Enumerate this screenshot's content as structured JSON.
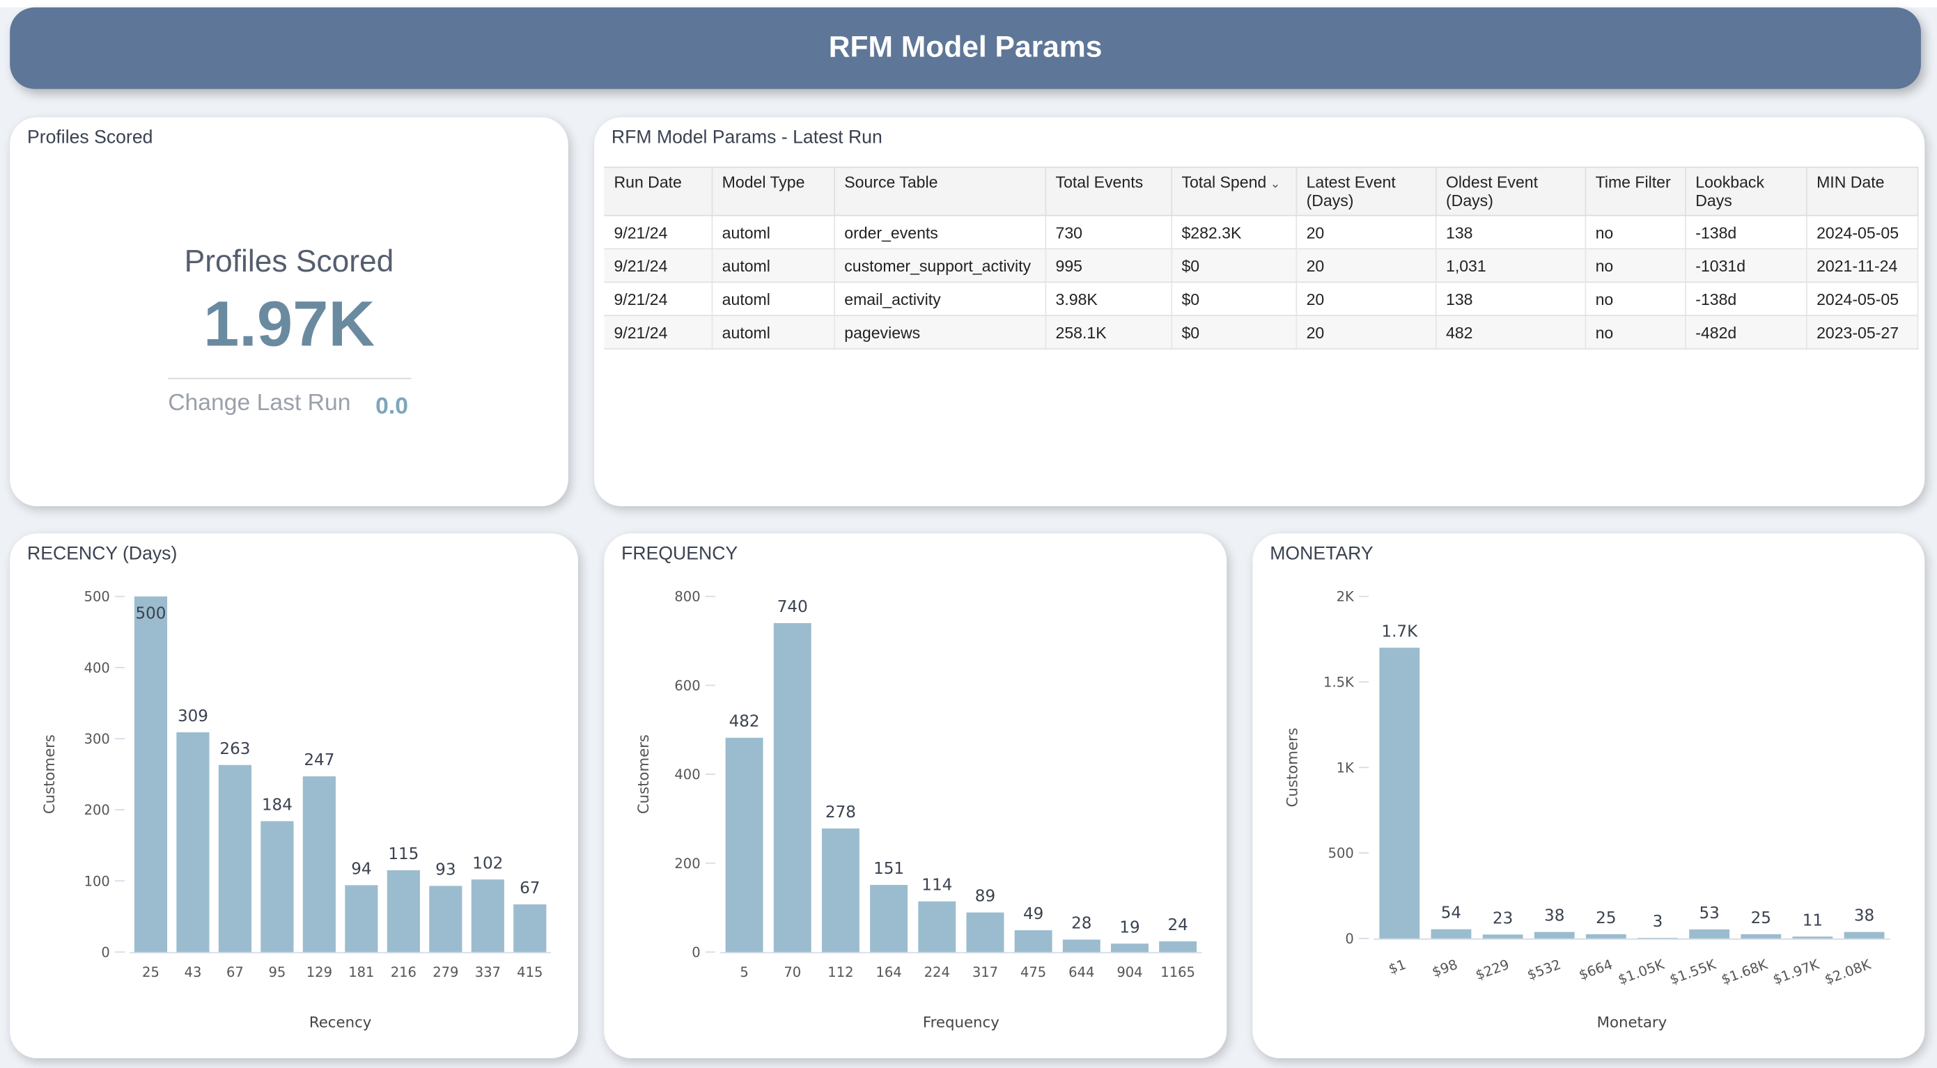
{
  "header": {
    "title": "RFM Model Params"
  },
  "kpi": {
    "card_title": "Profiles Scored",
    "label": "Profiles Scored",
    "value": "1.97K",
    "change_label": "Change Last Run",
    "change_value": "0.0"
  },
  "table": {
    "title": "RFM Model Params - Latest Run",
    "columns": [
      "Run Date",
      "Model Type",
      "Source Table",
      "Total Events",
      "Total Spend",
      "Latest Event (Days)",
      "Oldest Event (Days)",
      "Time Filter",
      "Lookback Days",
      "MIN Date"
    ],
    "sorted_column": "Total Spend",
    "rows": [
      [
        "9/21/24",
        "automl",
        "order_events",
        "730",
        "$282.3K",
        "20",
        "138",
        "no",
        "-138d",
        "2024-05-05"
      ],
      [
        "9/21/24",
        "automl",
        "customer_support_activity",
        "995",
        "$0",
        "20",
        "1,031",
        "no",
        "-1031d",
        "2021-11-24"
      ],
      [
        "9/21/24",
        "automl",
        "email_activity",
        "3.98K",
        "$0",
        "20",
        "138",
        "no",
        "-138d",
        "2024-05-05"
      ],
      [
        "9/21/24",
        "automl",
        "pageviews",
        "258.1K",
        "$0",
        "20",
        "482",
        "no",
        "-482d",
        "2023-05-27"
      ]
    ]
  },
  "colors": {
    "header": "#5e7697",
    "bar": "#9bbcce",
    "kpi": "#6a8aa0"
  },
  "chart_data": [
    {
      "type": "bar",
      "title": "RECENCY (Days)",
      "xlabel": "Recency",
      "ylabel": "Customers",
      "categories": [
        "25",
        "43",
        "67",
        "95",
        "129",
        "181",
        "216",
        "279",
        "337",
        "415"
      ],
      "values": [
        500,
        309,
        263,
        184,
        247,
        94,
        115,
        93,
        102,
        67
      ],
      "labels": [
        "500",
        "309",
        "263",
        "184",
        "247",
        "94",
        "115",
        "93",
        "102",
        "67"
      ],
      "ylim": [
        0,
        500
      ],
      "yticks": [
        0,
        100,
        200,
        300,
        400,
        500
      ],
      "ytick_labels": [
        "0",
        "100",
        "200",
        "300",
        "400",
        "500"
      ],
      "grid": false
    },
    {
      "type": "bar",
      "title": "FREQUENCY",
      "xlabel": "Frequency",
      "ylabel": "Customers",
      "categories": [
        "5",
        "70",
        "112",
        "164",
        "224",
        "317",
        "475",
        "644",
        "904",
        "1165"
      ],
      "values": [
        482,
        740,
        278,
        151,
        114,
        89,
        49,
        28,
        19,
        24
      ],
      "labels": [
        "482",
        "740",
        "278",
        "151",
        "114",
        "89",
        "49",
        "28",
        "19",
        "24"
      ],
      "ylim": [
        0,
        800
      ],
      "yticks": [
        0,
        200,
        400,
        600,
        800
      ],
      "ytick_labels": [
        "0",
        "200",
        "400",
        "600",
        "800"
      ],
      "grid": false
    },
    {
      "type": "bar",
      "title": "MONETARY",
      "xlabel": "Monetary",
      "ylabel": "Customers",
      "categories": [
        "$1",
        "$98",
        "$229",
        "$532",
        "$664",
        "$1.05K",
        "$1.55K",
        "$1.68K",
        "$1.97K",
        "$2.08K"
      ],
      "values": [
        1700,
        54,
        23,
        38,
        25,
        3,
        53,
        25,
        11,
        38
      ],
      "labels": [
        "1.7K",
        "54",
        "23",
        "38",
        "25",
        "3",
        "53",
        "25",
        "11",
        "38"
      ],
      "ylim": [
        0,
        2000
      ],
      "yticks": [
        0,
        500,
        1000,
        1500,
        2000
      ],
      "ytick_labels": [
        "0",
        "500",
        "1K",
        "1.5K",
        "2K"
      ],
      "grid": false
    }
  ]
}
